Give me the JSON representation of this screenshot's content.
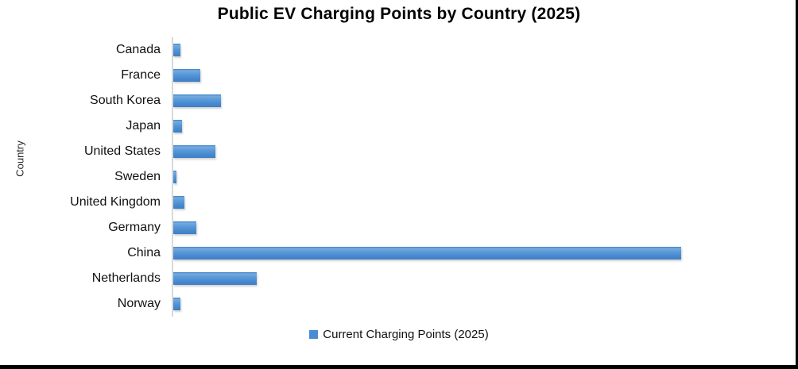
{
  "window": {
    "background": "#FFFFFF",
    "border_color": "#000000"
  },
  "chart_data": {
    "type": "bar",
    "orientation": "horizontal",
    "title": "Public EV Charging Points by Country (2025)",
    "ylabel": "Country",
    "xlabel": "",
    "categories": [
      "Canada",
      "France",
      "South Korea",
      "Japan",
      "United States",
      "Sweden",
      "United Kingdom",
      "Germany",
      "China",
      "Netherlands",
      "Norway"
    ],
    "series": [
      {
        "name": "Current Charging Points (2025)",
        "values": [
          1.4,
          5.3,
          9.4,
          1.7,
          8.3,
          0.6,
          2.2,
          4.5,
          100.0,
          16.4,
          1.4
        ]
      }
    ],
    "value_scale_note": "numeric x-axis not shown in chart; values are bar lengths as percent of longest bar (China = 100)",
    "x_axis": {
      "visible": false,
      "gridlines": false
    },
    "y_axis": {
      "line_color": "#D9D9D9"
    },
    "legend": {
      "position": "bottom",
      "label": "Current Charging Points (2025)"
    },
    "bar_color": "#4A8BD4",
    "text_color": "#000000"
  }
}
